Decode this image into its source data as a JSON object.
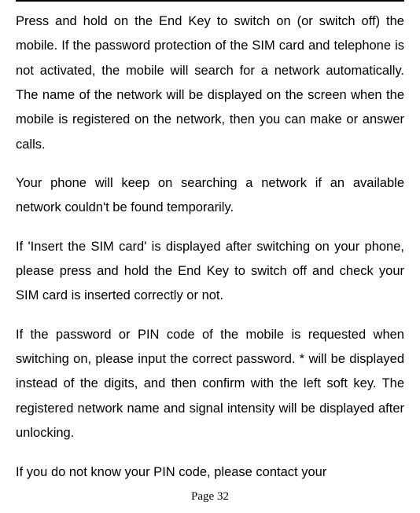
{
  "document": {
    "paragraphs": [
      "Press and hold on the End Key to switch on (or switch off) the mobile. If the password protection of the SIM card and telephone is not activated, the mobile will search for a network automatically. The name of the network will be displayed on the screen when the mobile is registered on the network, then you can make or answer calls.",
      "Your phone will keep on searching a network if an available network couldn't be found temporarily.",
      "If 'Insert the SIM card' is displayed after switching on your phone, please press and hold the End Key to switch off and check your SIM card is inserted correctly or not.",
      "If the password or PIN code of the mobile is requested when switching on, please input the correct password. * will be displayed instead of the digits, and then confirm with the left soft key. The registered network name and signal intensity will be displayed after unlocking.",
      "If you do not know your PIN code, please contact your"
    ],
    "page_number": "Page 32",
    "styling": {
      "background_color": "#ffffff",
      "text_color": "#000000",
      "font_size": 16.5,
      "line_height": 1.9,
      "divider_color": "#000000",
      "page_number_font": "Times New Roman"
    }
  }
}
